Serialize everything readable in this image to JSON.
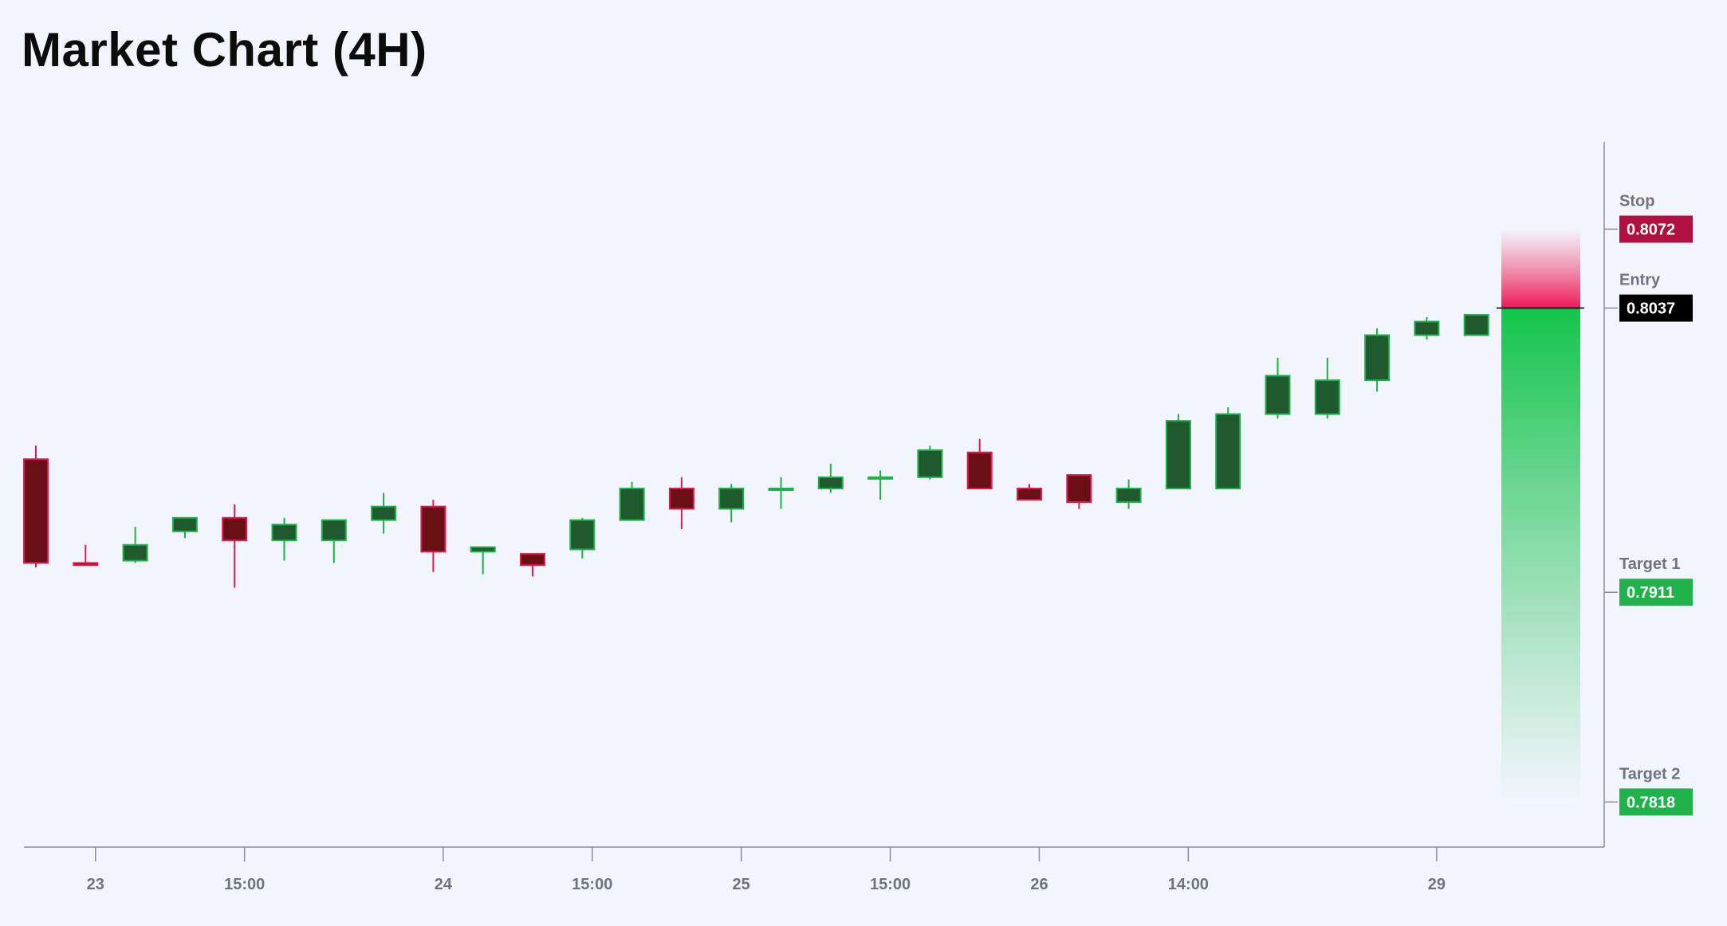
{
  "title": "Market Chart (4H)",
  "colors": {
    "background": "#f2f5fc",
    "bull_fill": "#1f5a2f",
    "bull_border": "#1fb04a",
    "bear_fill": "#6b0f17",
    "bear_border": "#e5174f",
    "stop": "#b0103f",
    "entry": "#000000",
    "target": "#22b24c",
    "axis": "#8a8d96"
  },
  "chart_data": {
    "type": "candlestick",
    "title": "Market Chart (4H)",
    "ylim": [
      0.7798,
      0.811
    ],
    "x_ticks": [
      {
        "index": 1.2,
        "label": "23"
      },
      {
        "index": 4.2,
        "label": "15:00"
      },
      {
        "index": 8.2,
        "label": "24"
      },
      {
        "index": 11.2,
        "label": "15:00"
      },
      {
        "index": 14.2,
        "label": "25"
      },
      {
        "index": 17.2,
        "label": "15:00"
      },
      {
        "index": 20.2,
        "label": "26"
      },
      {
        "index": 23.2,
        "label": "14:00"
      },
      {
        "index": 28.2,
        "label": "29"
      }
    ],
    "candles": [
      {
        "o": 0.797,
        "h": 0.7976,
        "l": 0.7922,
        "c": 0.7924
      },
      {
        "o": 0.7924,
        "h": 0.7932,
        "l": 0.7923,
        "c": 0.7923
      },
      {
        "o": 0.7925,
        "h": 0.794,
        "l": 0.7924,
        "c": 0.7932
      },
      {
        "o": 0.7938,
        "h": 0.7942,
        "l": 0.7935,
        "c": 0.7944
      },
      {
        "o": 0.7944,
        "h": 0.795,
        "l": 0.7913,
        "c": 0.7934
      },
      {
        "o": 0.7934,
        "h": 0.7944,
        "l": 0.7925,
        "c": 0.7941
      },
      {
        "o": 0.7934,
        "h": 0.7941,
        "l": 0.7924,
        "c": 0.7943
      },
      {
        "o": 0.7943,
        "h": 0.7955,
        "l": 0.7937,
        "c": 0.7949
      },
      {
        "o": 0.7949,
        "h": 0.7952,
        "l": 0.792,
        "c": 0.7929
      },
      {
        "o": 0.7929,
        "h": 0.7931,
        "l": 0.7919,
        "c": 0.7931
      },
      {
        "o": 0.7928,
        "h": 0.7928,
        "l": 0.7918,
        "c": 0.7923
      },
      {
        "o": 0.793,
        "h": 0.7944,
        "l": 0.7926,
        "c": 0.7943
      },
      {
        "o": 0.7943,
        "h": 0.796,
        "l": 0.7943,
        "c": 0.7957
      },
      {
        "o": 0.7957,
        "h": 0.7962,
        "l": 0.7939,
        "c": 0.7948
      },
      {
        "o": 0.7948,
        "h": 0.7959,
        "l": 0.7942,
        "c": 0.7957
      },
      {
        "o": 0.7957,
        "h": 0.7962,
        "l": 0.7948,
        "c": 0.7957
      },
      {
        "o": 0.7957,
        "h": 0.7968,
        "l": 0.7955,
        "c": 0.7962
      },
      {
        "o": 0.7962,
        "h": 0.7965,
        "l": 0.7952,
        "c": 0.7962
      },
      {
        "o": 0.7962,
        "h": 0.7976,
        "l": 0.7961,
        "c": 0.7974
      },
      {
        "o": 0.7973,
        "h": 0.7979,
        "l": 0.7957,
        "c": 0.7957
      },
      {
        "o": 0.7957,
        "h": 0.7959,
        "l": 0.7953,
        "c": 0.7952
      },
      {
        "o": 0.7963,
        "h": 0.7963,
        "l": 0.7948,
        "c": 0.7951
      },
      {
        "o": 0.7951,
        "h": 0.7961,
        "l": 0.7948,
        "c": 0.7957
      },
      {
        "o": 0.7957,
        "h": 0.799,
        "l": 0.7957,
        "c": 0.7987
      },
      {
        "o": 0.7957,
        "h": 0.7993,
        "l": 0.7957,
        "c": 0.799
      },
      {
        "o": 0.799,
        "h": 0.8015,
        "l": 0.7988,
        "c": 0.8007
      },
      {
        "o": 0.799,
        "h": 0.8015,
        "l": 0.7988,
        "c": 0.8005
      },
      {
        "o": 0.8005,
        "h": 0.8028,
        "l": 0.8,
        "c": 0.8025
      },
      {
        "o": 0.8025,
        "h": 0.8033,
        "l": 0.8023,
        "c": 0.8031
      },
      {
        "o": 0.8025,
        "h": 0.8034,
        "l": 0.8025,
        "c": 0.8034
      }
    ],
    "trade_zone": {
      "stop": 0.8072,
      "entry": 0.8037,
      "target2": 0.7818
    },
    "levels": [
      {
        "name": "Stop",
        "value": "0.8072",
        "price": 0.8072,
        "color": "#b0103f"
      },
      {
        "name": "Entry",
        "value": "0.8037",
        "price": 0.8037,
        "color": "#000000"
      },
      {
        "name": "Target 1",
        "value": "0.7911",
        "price": 0.7911,
        "color": "#22b24c"
      },
      {
        "name": "Target 2",
        "value": "0.7818",
        "price": 0.7818,
        "color": "#22b24c"
      }
    ]
  }
}
